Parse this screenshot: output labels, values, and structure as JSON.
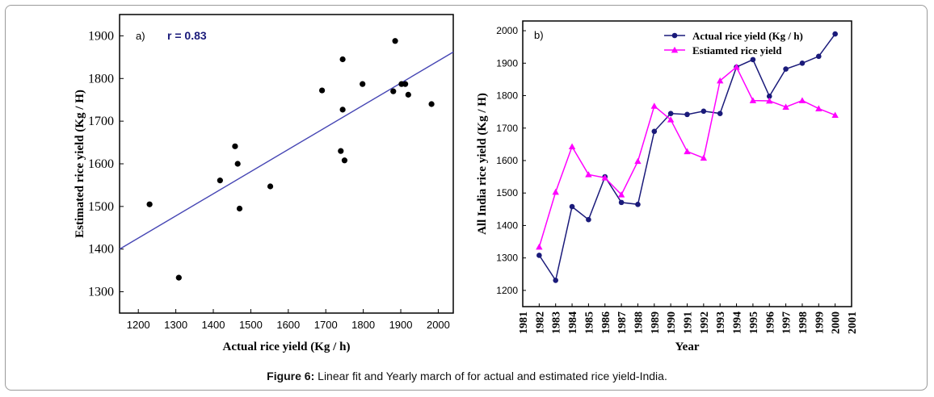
{
  "caption": {
    "label": "Figure 6:",
    "text": " Linear fit and Yearly march of for actual and estimated rice yield-India."
  },
  "colors": {
    "axis": "#000000",
    "fit_line": "#4646b4",
    "actual": "#1a1a7a",
    "estimated": "#ff00ff",
    "r_text": "#1a1a7a"
  },
  "chart_data": [
    {
      "type": "scatter",
      "panel_label": "a)",
      "annotation": "r = 0.83",
      "xlabel": "Actual rice yield (Kg / h)",
      "ylabel": "Estimated rice yield (Kg / H)",
      "xlim": [
        1150,
        2040
      ],
      "ylim": [
        1250,
        1950
      ],
      "xticks": [
        1200,
        1300,
        1400,
        1500,
        1600,
        1700,
        1800,
        1900,
        2000
      ],
      "yticks": [
        1300,
        1400,
        1500,
        1600,
        1700,
        1800,
        1900
      ],
      "grid": false,
      "points": [
        {
          "x": 1230,
          "y": 1505
        },
        {
          "x": 1308,
          "y": 1333
        },
        {
          "x": 1418,
          "y": 1561
        },
        {
          "x": 1458,
          "y": 1641
        },
        {
          "x": 1465,
          "y": 1600
        },
        {
          "x": 1470,
          "y": 1495
        },
        {
          "x": 1552,
          "y": 1547
        },
        {
          "x": 1690,
          "y": 1772
        },
        {
          "x": 1740,
          "y": 1630
        },
        {
          "x": 1745,
          "y": 1845
        },
        {
          "x": 1745,
          "y": 1727
        },
        {
          "x": 1750,
          "y": 1608
        },
        {
          "x": 1798,
          "y": 1787
        },
        {
          "x": 1880,
          "y": 1770
        },
        {
          "x": 1885,
          "y": 1888
        },
        {
          "x": 1902,
          "y": 1787
        },
        {
          "x": 1912,
          "y": 1787
        },
        {
          "x": 1920,
          "y": 1762
        },
        {
          "x": 1982,
          "y": 1740
        }
      ],
      "fit_line": {
        "x": [
          1150,
          2040
        ],
        "y": [
          1400,
          1862
        ]
      }
    },
    {
      "type": "line",
      "panel_label": "b)",
      "xlabel": "Year",
      "ylabel": "All India rice yield (Kg / H)",
      "ylim": [
        1150,
        2030
      ],
      "yticks": [
        1200,
        1300,
        1400,
        1500,
        1600,
        1700,
        1800,
        1900,
        2000
      ],
      "x_range": [
        1981,
        2001
      ],
      "x": [
        1982,
        1983,
        1984,
        1985,
        1986,
        1987,
        1988,
        1989,
        1990,
        1991,
        1992,
        1993,
        1994,
        1995,
        1996,
        1997,
        1998,
        1999,
        2000
      ],
      "x_tick_labels": [
        "1981",
        "1982",
        "1983",
        "1984",
        "1985",
        "1986",
        "1987",
        "1988",
        "1989",
        "1990",
        "1991",
        "1992",
        "1993",
        "1994",
        "1995",
        "1996",
        "1997",
        "1998",
        "1999",
        "2000",
        "2001"
      ],
      "legend": "top-right",
      "grid": false,
      "series": [
        {
          "name": "Actual rice yield (Kg / h)",
          "marker": "circle",
          "values": [
            1308,
            1231,
            1458,
            1418,
            1550,
            1471,
            1465,
            1690,
            1745,
            1742,
            1752,
            1745,
            1888,
            1911,
            1798,
            1882,
            1900,
            1921,
            1990
          ]
        },
        {
          "name": "Estiamted rice yield",
          "marker": "triangle",
          "values": [
            1334,
            1503,
            1643,
            1557,
            1547,
            1495,
            1598,
            1768,
            1726,
            1628,
            1608,
            1846,
            1888,
            1785,
            1784,
            1765,
            1785,
            1760,
            1740
          ]
        }
      ]
    }
  ]
}
